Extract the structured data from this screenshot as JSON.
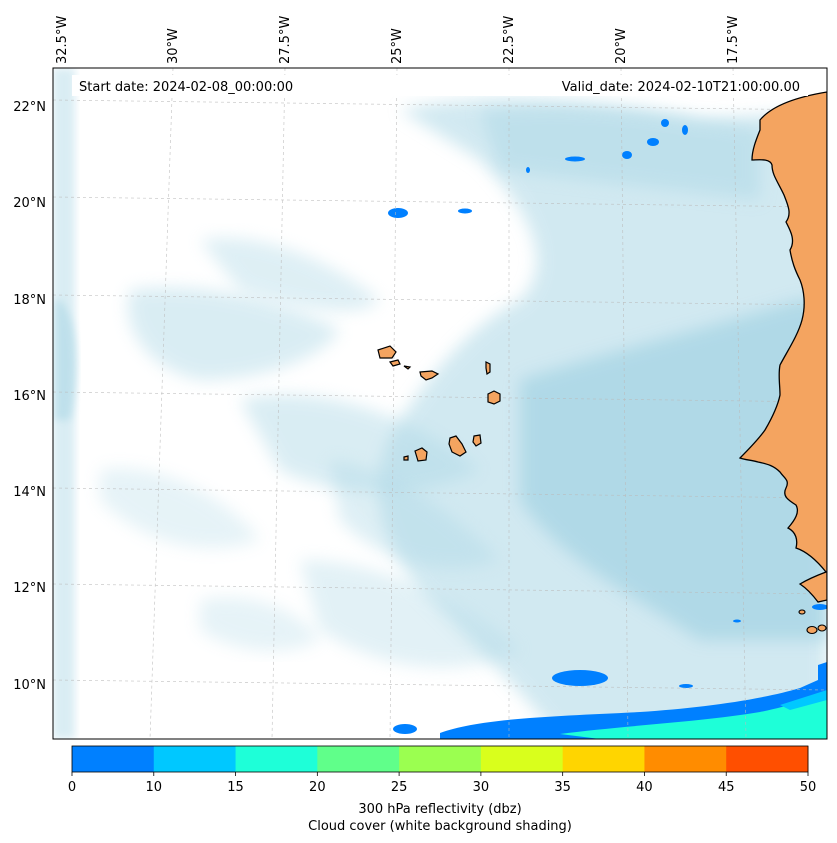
{
  "info": {
    "start_date": "Start date: 2024-02-08_00:00:00",
    "valid_date": "Valid_date: 2024-02-10T21:00:00.00"
  },
  "map": {
    "lon_labels": [
      "32.5°W",
      "30°W",
      "27.5°W",
      "25°W",
      "22.5°W",
      "20°W",
      "17.5°W"
    ],
    "lat_labels": [
      "22°N",
      "20°N",
      "18°N",
      "16°N",
      "14°N",
      "12°N",
      "10°N"
    ],
    "land_color": "#f4a460",
    "ocean_color": "#ffffff",
    "cloud_color": "#add8e6"
  },
  "colorbar": {
    "label_line1": "300 hPa reflectivity (dbz)",
    "label_line2": "Cloud cover (white background shading)",
    "ticks": [
      "0",
      "10",
      "15",
      "20",
      "25",
      "30",
      "35",
      "40",
      "45",
      "50"
    ],
    "colors": [
      "#0080ff",
      "#00c8ff",
      "#1effd8",
      "#60ff8a",
      "#9bff50",
      "#d9ff1c",
      "#ffd500",
      "#ff8c00",
      "#ff4f00"
    ]
  }
}
